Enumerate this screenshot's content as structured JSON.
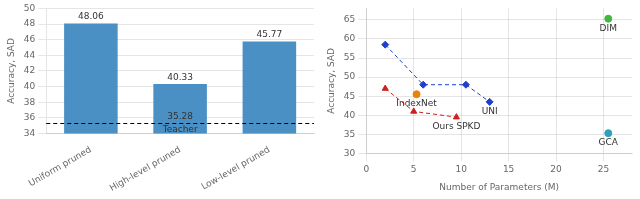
{
  "chart_data": [
    {
      "type": "bar",
      "categories": [
        "Uniform pruned",
        "High-level pruned",
        "Low-level pruned"
      ],
      "values": [
        48.06,
        40.33,
        45.77
      ],
      "color": "#4A90C4",
      "ylim": [
        34,
        50
      ],
      "yticks": [
        34,
        36,
        38,
        40,
        42,
        44,
        46,
        48,
        50
      ],
      "ylabel": "Accuracy, SAD",
      "grid": "y",
      "data_labels": true,
      "annotations": [
        {
          "type": "hline",
          "y": 35.28,
          "label": "Teacher",
          "value_label": "35.28",
          "color": "#000000",
          "line_style": "dashed"
        }
      ]
    },
    {
      "type": "scatter",
      "series": [
        {
          "type": "line",
          "color": "#2040CC",
          "marker": "diamond",
          "line_style": "dashed",
          "x": [
            2.0,
            6.0,
            10.5,
            13.0
          ],
          "values": [
            58.5,
            48.0,
            48.0,
            43.5
          ]
        },
        {
          "type": "line",
          "color": "#CC2020",
          "marker": "triangle",
          "line_style": "dashed",
          "x": [
            2.0,
            5.0,
            9.5
          ],
          "values": [
            47.0,
            41.0,
            39.5
          ]
        },
        {
          "type": "scatter",
          "color": "#E8830A",
          "marker": "circle",
          "x": [
            5.3
          ],
          "values": [
            45.5
          ]
        },
        {
          "type": "scatter",
          "color": "#40B840",
          "marker": "circle",
          "x": [
            25.5
          ],
          "values": [
            65.3
          ]
        },
        {
          "type": "scatter",
          "color": "#30A0B8",
          "marker": "circle",
          "x": [
            25.5
          ],
          "values": [
            35.3
          ]
        }
      ],
      "xlim": [
        0,
        28
      ],
      "ylim": [
        30,
        68
      ],
      "xticks": [
        0,
        5,
        10,
        15,
        20,
        25
      ],
      "yticks": [
        30,
        35,
        40,
        45,
        50,
        55,
        60,
        65
      ],
      "xlabel": "Number of Parameters (M)",
      "ylabel": "Accuracy, SAD",
      "grid": true,
      "annotations": [
        {
          "text": "DIM",
          "x": 25.5,
          "y": 65.3
        },
        {
          "text": "GCA",
          "x": 25.5,
          "y": 35.3
        },
        {
          "text": "IndexNet",
          "x": 5.3,
          "y": 45.5
        },
        {
          "text": "UNI",
          "x": 13.0,
          "y": 43.5
        },
        {
          "text": "Ours SPKD",
          "x": 9.5,
          "y": 39.5
        }
      ]
    }
  ]
}
